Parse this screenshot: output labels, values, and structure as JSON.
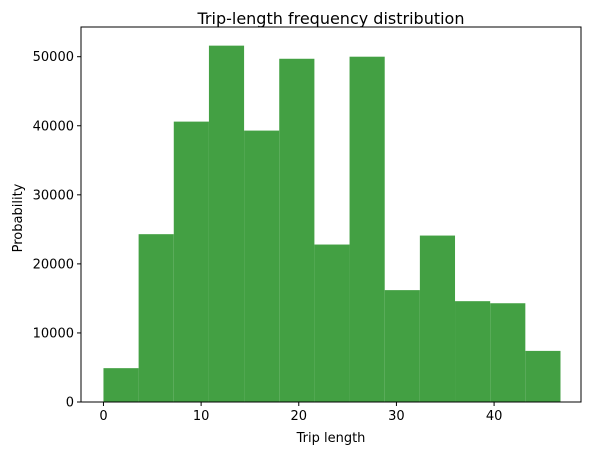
{
  "chart_data": {
    "type": "bar",
    "title": "Trip-length frequency distribution",
    "xlabel": "Trip length",
    "ylabel": "Probability",
    "xlim": [
      -2.3,
      48.9
    ],
    "ylim": [
      0,
      54300
    ],
    "bar_color": "#43a043",
    "bins": [
      {
        "x0": 0.0,
        "x1": 3.6,
        "value": 4900
      },
      {
        "x0": 3.6,
        "x1": 7.2,
        "value": 24300
      },
      {
        "x0": 7.2,
        "x1": 10.8,
        "value": 40600
      },
      {
        "x0": 10.8,
        "x1": 14.4,
        "value": 51600
      },
      {
        "x0": 14.4,
        "x1": 18.0,
        "value": 39300
      },
      {
        "x0": 18.0,
        "x1": 21.6,
        "value": 49700
      },
      {
        "x0": 21.6,
        "x1": 25.2,
        "value": 22800
      },
      {
        "x0": 25.2,
        "x1": 28.8,
        "value": 50000
      },
      {
        "x0": 28.8,
        "x1": 32.4,
        "value": 16200
      },
      {
        "x0": 32.4,
        "x1": 36.0,
        "value": 24100
      },
      {
        "x0": 36.0,
        "x1": 39.6,
        "value": 14600
      },
      {
        "x0": 39.6,
        "x1": 43.2,
        "value": 14300
      },
      {
        "x0": 43.2,
        "x1": 46.8,
        "value": 7400
      }
    ],
    "x_ticks": [
      {
        "value": 0,
        "label": "0"
      },
      {
        "value": 10,
        "label": "10"
      },
      {
        "value": 20,
        "label": "20"
      },
      {
        "value": 30,
        "label": "30"
      },
      {
        "value": 40,
        "label": "40"
      }
    ],
    "y_ticks": [
      {
        "value": 0,
        "label": "0"
      },
      {
        "value": 10000,
        "label": "10000"
      },
      {
        "value": 20000,
        "label": "20000"
      },
      {
        "value": 30000,
        "label": "30000"
      },
      {
        "value": 40000,
        "label": "40000"
      },
      {
        "value": 50000,
        "label": "50000"
      }
    ],
    "grid": false,
    "legend": "none"
  }
}
